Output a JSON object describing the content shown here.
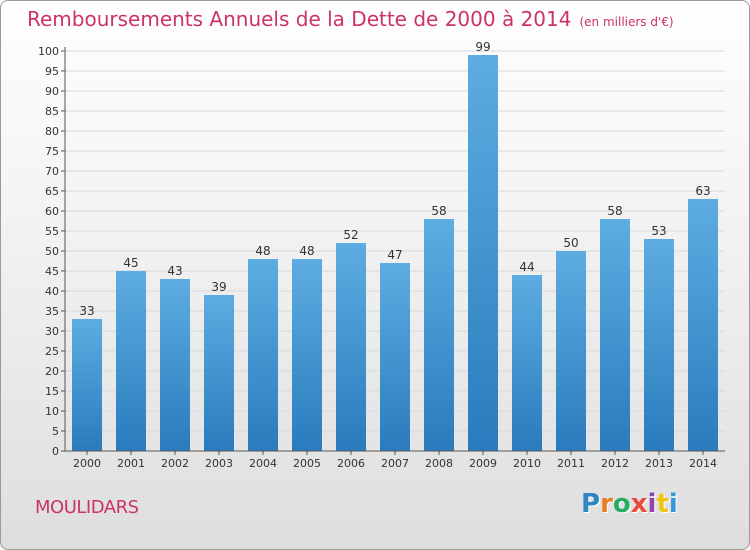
{
  "header": {
    "title": "Remboursements Annuels de la Dette de 2000 à 2014",
    "subtitle": "(en milliers d'€)"
  },
  "footer": {
    "commune": "MOULIDARS",
    "logo_letters": [
      "P",
      "r",
      "o",
      "x",
      "i",
      "t",
      "i"
    ],
    "logo_colors": [
      "#2e86c1",
      "#e67e22",
      "#27ae60",
      "#e74c3c",
      "#8e44ad",
      "#f1c40f",
      "#3498db"
    ]
  },
  "colors": {
    "accent": "#cc3366",
    "bar_light": "#5dade2",
    "bar_dark": "#2a7bbd"
  },
  "chart_data": {
    "type": "bar",
    "title": "Remboursements Annuels de la Dette de 2000 à 2014",
    "subtitle": "(en milliers d'€)",
    "categories": [
      "2000",
      "2001",
      "2002",
      "2003",
      "2004",
      "2005",
      "2006",
      "2007",
      "2008",
      "2009",
      "2010",
      "2011",
      "2012",
      "2013",
      "2014"
    ],
    "values": [
      33,
      45,
      43,
      39,
      48,
      48,
      52,
      47,
      58,
      99,
      44,
      50,
      58,
      53,
      63
    ],
    "ylim": [
      0,
      100
    ],
    "yticks": [
      0,
      5,
      10,
      15,
      20,
      25,
      30,
      35,
      40,
      45,
      50,
      55,
      60,
      65,
      70,
      75,
      80,
      85,
      90,
      95,
      100
    ],
    "grid": true,
    "data_labels": true
  }
}
